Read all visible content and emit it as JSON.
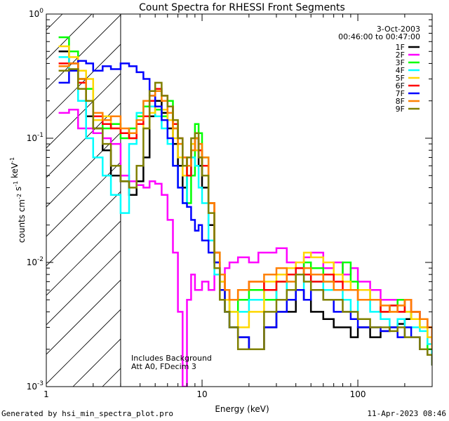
{
  "chart_data": {
    "type": "line",
    "title": "Count Spectra for RHESSI Front Segments",
    "xlabel": "Energy (keV)",
    "ylabel": "counts cm^-2 s^-1 keV^-1",
    "xscale": "log",
    "yscale": "log",
    "xlim": [
      1,
      300
    ],
    "ylim": [
      0.001,
      1.0
    ],
    "x_tick_labels": [
      "1",
      "10",
      "100"
    ],
    "y_tick_labels": [
      "10^-3",
      "10^-2",
      "10^-1",
      "10^0"
    ],
    "grid": false,
    "legend_position": "top-right",
    "date": "3-Oct-2003",
    "time_range": "00:46:00 to 00:47:00",
    "annotations": [
      "Includes Background",
      "Att A0, FDecim 3"
    ],
    "shaded_region": {
      "x_max": 3,
      "style": "diagonal hatch"
    },
    "series": [
      {
        "name": "1F",
        "color": "#000000",
        "x": [
          1.2,
          1.4,
          1.6,
          1.8,
          2.0,
          2.3,
          2.6,
          3.0,
          3.4,
          3.8,
          4.2,
          4.6,
          5.0,
          5.5,
          6.0,
          6.5,
          7.0,
          7.5,
          8.0,
          8.5,
          9.0,
          9.5,
          10,
          11,
          12,
          13,
          14,
          15,
          17,
          20,
          25,
          30,
          35,
          40,
          45,
          50,
          60,
          70,
          80,
          90,
          100,
          120,
          140,
          160,
          180,
          200,
          220,
          250,
          280,
          300
        ],
        "y": [
          0.5,
          0.4,
          0.3,
          0.15,
          0.12,
          0.08,
          0.05,
          0.045,
          0.035,
          0.045,
          0.07,
          0.15,
          0.2,
          0.16,
          0.12,
          0.09,
          0.06,
          0.04,
          0.05,
          0.08,
          0.1,
          0.06,
          0.04,
          0.02,
          0.01,
          0.006,
          0.004,
          0.003,
          0.0025,
          0.002,
          0.003,
          0.004,
          0.004,
          0.006,
          0.005,
          0.004,
          0.0035,
          0.003,
          0.003,
          0.0025,
          0.003,
          0.0025,
          0.0028,
          0.003,
          0.0032,
          0.0035,
          0.004,
          0.0035,
          0.003,
          0.0015
        ]
      },
      {
        "name": "2F",
        "color": "#ff00ff",
        "x": [
          1.2,
          1.4,
          1.6,
          1.8,
          2.0,
          2.3,
          2.6,
          3.0,
          3.4,
          3.8,
          4.2,
          4.6,
          5.0,
          5.5,
          6.0,
          6.5,
          7.0,
          7.5,
          8.0,
          8.5,
          9.0,
          10,
          11,
          12,
          13,
          14,
          15,
          17,
          20,
          23,
          26,
          30,
          35,
          40,
          45,
          50,
          60,
          70,
          80,
          90,
          100,
          120,
          140,
          160,
          180,
          200,
          220,
          250,
          280,
          300
        ],
        "y": [
          0.16,
          0.17,
          0.12,
          0.12,
          0.11,
          0.1,
          0.09,
          0.05,
          0.045,
          0.042,
          0.04,
          0.045,
          0.043,
          0.035,
          0.022,
          0.012,
          0.004,
          0.001,
          0.005,
          0.008,
          0.006,
          0.007,
          0.006,
          0.008,
          0.007,
          0.009,
          0.01,
          0.011,
          0.01,
          0.012,
          0.012,
          0.013,
          0.01,
          0.009,
          0.011,
          0.012,
          0.009,
          0.01,
          0.008,
          0.009,
          0.007,
          0.006,
          0.005,
          0.005,
          0.004,
          0.005,
          0.004,
          0.003,
          0.0025,
          0.002
        ]
      },
      {
        "name": "3F",
        "color": "#00ff00",
        "x": [
          1.2,
          1.4,
          1.6,
          1.8,
          2.0,
          2.3,
          2.6,
          3.0,
          3.4,
          3.8,
          4.2,
          4.6,
          5.0,
          5.5,
          6.0,
          6.5,
          7.0,
          7.5,
          8.0,
          8.5,
          9.0,
          9.5,
          10,
          11,
          12,
          13,
          14,
          15,
          17,
          20,
          25,
          30,
          35,
          40,
          45,
          50,
          60,
          70,
          80,
          90,
          100,
          120,
          140,
          160,
          180,
          200,
          220,
          250,
          280,
          300
        ],
        "y": [
          0.65,
          0.5,
          0.3,
          0.25,
          0.15,
          0.12,
          0.13,
          0.1,
          0.12,
          0.15,
          0.18,
          0.2,
          0.17,
          0.15,
          0.2,
          0.12,
          0.09,
          0.06,
          0.03,
          0.05,
          0.13,
          0.11,
          0.07,
          0.03,
          0.012,
          0.007,
          0.005,
          0.004,
          0.005,
          0.006,
          0.005,
          0.007,
          0.006,
          0.008,
          0.01,
          0.009,
          0.007,
          0.008,
          0.01,
          0.007,
          0.006,
          0.005,
          0.004,
          0.0045,
          0.005,
          0.004,
          0.0035,
          0.003,
          0.002,
          0.0015
        ]
      },
      {
        "name": "4F",
        "color": "#00ffff",
        "x": [
          1.2,
          1.4,
          1.6,
          1.8,
          2.0,
          2.3,
          2.6,
          3.0,
          3.4,
          3.8,
          4.2,
          4.6,
          5.0,
          5.5,
          6.0,
          6.5,
          7.0,
          7.5,
          8.0,
          8.5,
          9.0,
          9.5,
          10,
          11,
          12,
          13,
          14,
          15,
          17,
          20,
          25,
          30,
          35,
          40,
          45,
          50,
          60,
          70,
          80,
          90,
          100,
          120,
          140,
          160,
          180,
          200,
          220,
          250,
          280,
          300
        ],
        "y": [
          0.45,
          0.35,
          0.2,
          0.1,
          0.07,
          0.05,
          0.035,
          0.025,
          0.09,
          0.16,
          0.2,
          0.18,
          0.15,
          0.12,
          0.09,
          0.06,
          0.04,
          0.03,
          0.05,
          0.07,
          0.06,
          0.04,
          0.03,
          0.015,
          0.008,
          0.005,
          0.004,
          0.003,
          0.004,
          0.005,
          0.006,
          0.005,
          0.007,
          0.006,
          0.008,
          0.007,
          0.006,
          0.006,
          0.005,
          0.004,
          0.005,
          0.004,
          0.0035,
          0.003,
          0.0035,
          0.003,
          0.003,
          0.0028,
          0.0022,
          0.0015
        ]
      },
      {
        "name": "5F",
        "color": "#ffd700",
        "x": [
          1.2,
          1.4,
          1.6,
          1.8,
          2.0,
          2.3,
          2.6,
          3.0,
          3.4,
          3.8,
          4.2,
          4.6,
          5.0,
          5.5,
          6.0,
          6.5,
          7.0,
          7.5,
          8.0,
          8.5,
          9.0,
          9.5,
          10,
          11,
          12,
          13,
          14,
          15,
          17,
          20,
          25,
          30,
          35,
          40,
          45,
          50,
          60,
          70,
          80,
          90,
          100,
          120,
          140,
          160,
          180,
          200,
          220,
          250,
          280,
          300
        ],
        "y": [
          0.55,
          0.45,
          0.35,
          0.3,
          0.14,
          0.15,
          0.12,
          0.11,
          0.1,
          0.13,
          0.12,
          0.16,
          0.18,
          0.17,
          0.14,
          0.1,
          0.07,
          0.05,
          0.06,
          0.09,
          0.08,
          0.07,
          0.06,
          0.03,
          0.01,
          0.007,
          0.005,
          0.004,
          0.003,
          0.004,
          0.007,
          0.008,
          0.009,
          0.01,
          0.012,
          0.011,
          0.01,
          0.008,
          0.007,
          0.006,
          0.006,
          0.005,
          0.004,
          0.004,
          0.0045,
          0.004,
          0.0035,
          0.003,
          0.0025,
          0.002
        ]
      },
      {
        "name": "6F",
        "color": "#ff0000",
        "x": [
          1.2,
          1.4,
          1.6,
          1.8,
          2.0,
          2.3,
          2.6,
          3.0,
          3.4,
          3.8,
          4.2,
          4.6,
          5.0,
          5.5,
          6.0,
          6.5,
          7.0,
          7.5,
          8.0,
          8.5,
          9.0,
          9.5,
          10,
          11,
          12,
          13,
          14,
          15,
          17,
          20,
          25,
          30,
          35,
          40,
          45,
          50,
          60,
          70,
          80,
          90,
          100,
          120,
          140,
          160,
          180,
          200,
          220,
          250,
          280,
          300
        ],
        "y": [
          0.4,
          0.4,
          0.28,
          0.2,
          0.15,
          0.13,
          0.12,
          0.11,
          0.1,
          0.13,
          0.15,
          0.2,
          0.25,
          0.22,
          0.18,
          0.13,
          0.1,
          0.07,
          0.05,
          0.08,
          0.1,
          0.08,
          0.06,
          0.03,
          0.012,
          0.008,
          0.006,
          0.005,
          0.006,
          0.007,
          0.006,
          0.007,
          0.008,
          0.009,
          0.008,
          0.007,
          0.008,
          0.007,
          0.006,
          0.006,
          0.005,
          0.005,
          0.004,
          0.0045,
          0.004,
          0.005,
          0.004,
          0.0035,
          0.003,
          0.0022
        ]
      },
      {
        "name": "7F",
        "color": "#0000ff",
        "x": [
          1.2,
          1.4,
          1.6,
          1.8,
          2.0,
          2.3,
          2.6,
          3.0,
          3.4,
          3.8,
          4.2,
          4.6,
          5.0,
          5.5,
          6.0,
          6.5,
          7.0,
          7.5,
          8.0,
          8.5,
          9.0,
          9.5,
          10,
          11,
          12,
          13,
          14,
          15,
          17,
          20,
          25,
          30,
          35,
          40,
          45,
          50,
          60,
          70,
          80,
          90,
          100,
          120,
          140,
          160,
          180,
          200,
          220,
          250,
          280,
          300
        ],
        "y": [
          0.28,
          0.35,
          0.42,
          0.4,
          0.35,
          0.38,
          0.36,
          0.4,
          0.38,
          0.34,
          0.3,
          0.22,
          0.18,
          0.14,
          0.1,
          0.06,
          0.04,
          0.03,
          0.028,
          0.022,
          0.018,
          0.02,
          0.015,
          0.012,
          0.01,
          0.006,
          0.004,
          0.003,
          0.0025,
          0.002,
          0.003,
          0.004,
          0.005,
          0.006,
          0.005,
          0.006,
          0.005,
          0.004,
          0.004,
          0.0035,
          0.003,
          0.003,
          0.0028,
          0.003,
          0.0025,
          0.003,
          0.0025,
          0.002,
          0.0018,
          0.0015
        ]
      },
      {
        "name": "8F",
        "color": "#ff8000",
        "x": [
          1.2,
          1.4,
          1.6,
          1.8,
          2.0,
          2.3,
          2.6,
          3.0,
          3.4,
          3.8,
          4.2,
          4.6,
          5.0,
          5.5,
          6.0,
          6.5,
          7.0,
          7.5,
          8.0,
          8.5,
          9.0,
          9.5,
          10,
          11,
          12,
          13,
          14,
          15,
          17,
          20,
          25,
          30,
          35,
          40,
          45,
          50,
          60,
          70,
          80,
          90,
          100,
          120,
          140,
          160,
          180,
          200,
          220,
          250,
          280,
          300
        ],
        "y": [
          0.38,
          0.4,
          0.3,
          0.2,
          0.16,
          0.14,
          0.15,
          0.12,
          0.11,
          0.14,
          0.2,
          0.22,
          0.24,
          0.2,
          0.16,
          0.12,
          0.09,
          0.07,
          0.06,
          0.08,
          0.1,
          0.09,
          0.07,
          0.03,
          0.012,
          0.008,
          0.006,
          0.005,
          0.006,
          0.007,
          0.008,
          0.009,
          0.007,
          0.008,
          0.009,
          0.008,
          0.007,
          0.006,
          0.006,
          0.006,
          0.005,
          0.005,
          0.0045,
          0.004,
          0.0045,
          0.005,
          0.004,
          0.0035,
          0.003,
          0.002
        ]
      },
      {
        "name": "9F",
        "color": "#808000",
        "x": [
          1.2,
          1.4,
          1.6,
          1.8,
          2.0,
          2.3,
          2.6,
          3.0,
          3.4,
          3.8,
          4.2,
          4.6,
          5.0,
          5.5,
          6.0,
          6.5,
          7.0,
          7.5,
          8.0,
          8.5,
          9.0,
          9.5,
          10,
          11,
          12,
          13,
          14,
          15,
          17,
          20,
          25,
          30,
          35,
          40,
          45,
          50,
          60,
          70,
          80,
          90,
          100,
          120,
          140,
          160,
          180,
          200,
          220,
          250,
          280,
          300
        ],
        "y": [
          0.35,
          0.36,
          0.25,
          0.2,
          0.12,
          0.09,
          0.06,
          0.045,
          0.04,
          0.06,
          0.12,
          0.24,
          0.28,
          0.22,
          0.18,
          0.14,
          0.1,
          0.06,
          0.07,
          0.1,
          0.11,
          0.07,
          0.05,
          0.025,
          0.009,
          0.005,
          0.004,
          0.003,
          0.002,
          0.002,
          0.004,
          0.005,
          0.006,
          0.008,
          0.007,
          0.006,
          0.005,
          0.005,
          0.004,
          0.004,
          0.0035,
          0.003,
          0.003,
          0.0028,
          0.003,
          0.0025,
          0.0025,
          0.002,
          0.0018,
          0.0015
        ]
      }
    ]
  },
  "footer": {
    "left": "Generated by hsi_min_spectra_plot.pro",
    "right": "11-Apr-2023 08:46"
  }
}
